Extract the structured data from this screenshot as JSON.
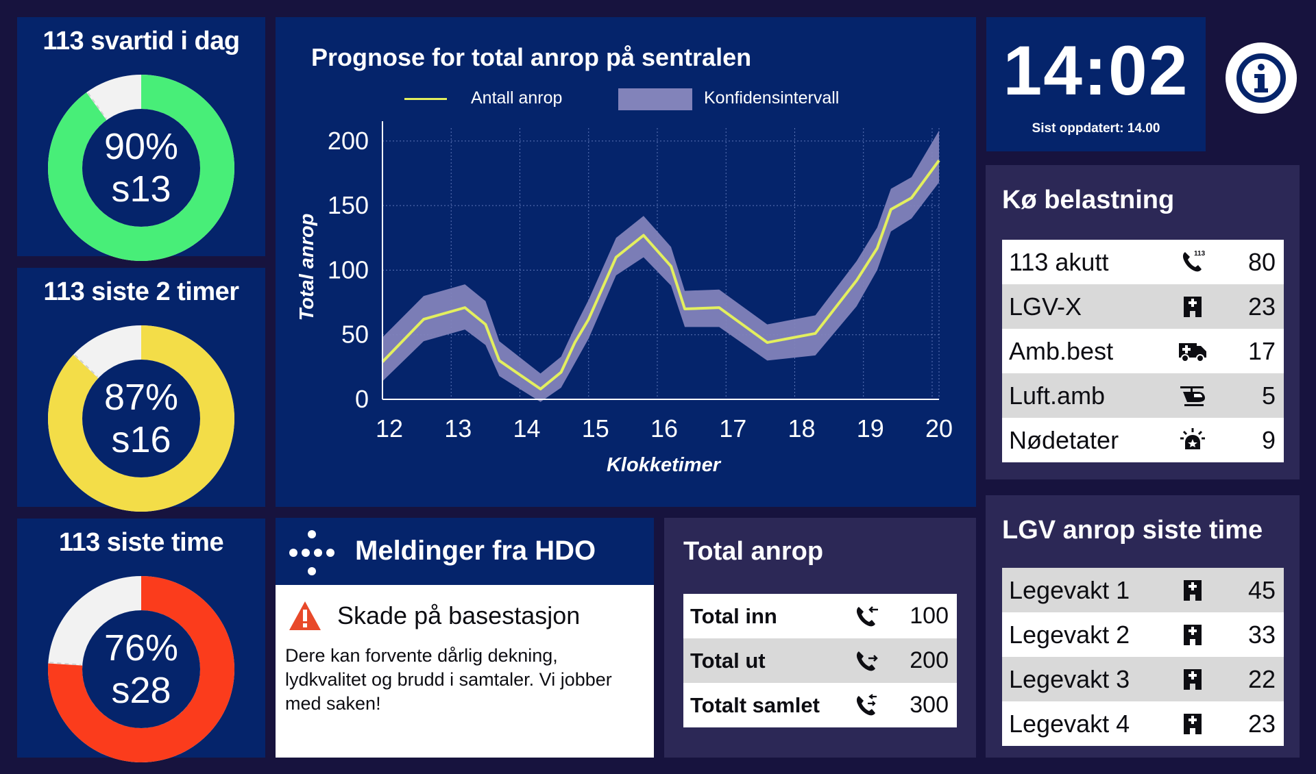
{
  "donuts": [
    {
      "title": "113 svartid i dag",
      "percent": "90%",
      "sub": "s13",
      "value": 90,
      "color": "#48ee78"
    },
    {
      "title": "113 siste 2 timer",
      "percent": "87%",
      "sub": "s16",
      "value": 87,
      "color": "#f3dd48"
    },
    {
      "title": "113 siste time",
      "percent": "76%",
      "sub": "s28",
      "value": 76,
      "color": "#fb3c1c"
    }
  ],
  "forecast": {
    "title": "Prognose for total anrop på sentralen",
    "legend_line": "Antall anrop",
    "legend_band": "Konfidensintervall",
    "line_color": "#e3ef5e",
    "band_color": "#8283ba"
  },
  "chart_data": {
    "type": "line",
    "title": "Prognose for total anrop på sentralen",
    "xlabel": "Klokketimer",
    "ylabel": "Total anrop",
    "xlim": [
      12,
      20.1
    ],
    "ylim": [
      0,
      210
    ],
    "x_ticks": [
      12,
      13,
      14,
      15,
      16,
      17,
      18,
      19,
      20
    ],
    "y_ticks": [
      0,
      50,
      100,
      150,
      200
    ],
    "grid": true,
    "legend_position": "top",
    "series": [
      {
        "name": "Antall anrop",
        "x": [
          12,
          12.6,
          13.2,
          13.5,
          13.7,
          14.3,
          14.6,
          14.8,
          15.0,
          15.4,
          15.8,
          16.2,
          16.4,
          16.9,
          17.6,
          18.3,
          18.9,
          19.2,
          19.4,
          19.7,
          20.1
        ],
        "y": [
          29,
          62,
          71,
          58,
          30,
          8,
          21,
          44,
          62,
          110,
          127,
          103,
          70,
          71,
          44,
          51,
          92,
          117,
          147,
          156,
          185
        ]
      },
      {
        "name": "Konfidensintervall",
        "x": [
          12,
          12.6,
          13.2,
          13.5,
          13.7,
          14.3,
          14.6,
          14.8,
          15.0,
          15.4,
          15.8,
          16.2,
          16.4,
          16.9,
          17.6,
          18.3,
          18.9,
          19.2,
          19.4,
          19.7,
          20.1
        ],
        "y_upper": [
          48,
          80,
          89,
          76,
          45,
          20,
          33,
          56,
          77,
          125,
          142,
          118,
          84,
          85,
          58,
          65,
          107,
          133,
          163,
          172,
          208
        ],
        "y_lower": [
          14,
          45,
          54,
          42,
          18,
          -2,
          9,
          28,
          47,
          96,
          110,
          88,
          56,
          56,
          30,
          34,
          72,
          100,
          130,
          140,
          168
        ]
      }
    ]
  },
  "clock": {
    "time": "14:02",
    "updated": "Sist oppdatert: 14.00"
  },
  "queue": {
    "title": "Kø belastning",
    "rows": [
      {
        "label": "113 akutt",
        "icon": "phone-113-icon",
        "value": "80"
      },
      {
        "label": "LGV-X",
        "icon": "hospital-icon",
        "value": "23"
      },
      {
        "label": "Amb.best",
        "icon": "ambulance-icon",
        "value": "17"
      },
      {
        "label": "Luft.amb",
        "icon": "helicopter-icon",
        "value": "5"
      },
      {
        "label": "Nødetater",
        "icon": "siren-icon",
        "value": "9"
      }
    ]
  },
  "lgv": {
    "title": "LGV anrop siste time",
    "rows": [
      {
        "label": "Legevakt 1",
        "icon": "hospital-icon",
        "value": "45"
      },
      {
        "label": "Legevakt 2",
        "icon": "hospital-icon",
        "value": "33"
      },
      {
        "label": "Legevakt 3",
        "icon": "hospital-icon",
        "value": "22"
      },
      {
        "label": "Legevakt 4",
        "icon": "hospital-icon",
        "value": "23"
      }
    ]
  },
  "messages": {
    "title": "Meldinger fra HDO",
    "heading": "Skade på basestasjon",
    "body": "Dere kan forvente dårlig dekning, lydkvalitet og brudd i samtaler. Vi jobber med saken!"
  },
  "totals": {
    "title": "Total anrop",
    "rows": [
      {
        "label": "Total inn",
        "icon": "phone-incoming-icon",
        "value": "100"
      },
      {
        "label": "Total ut",
        "icon": "phone-outgoing-icon",
        "value": "200"
      },
      {
        "label": "Totalt samlet",
        "icon": "phone-both-icon",
        "value": "300"
      }
    ]
  }
}
